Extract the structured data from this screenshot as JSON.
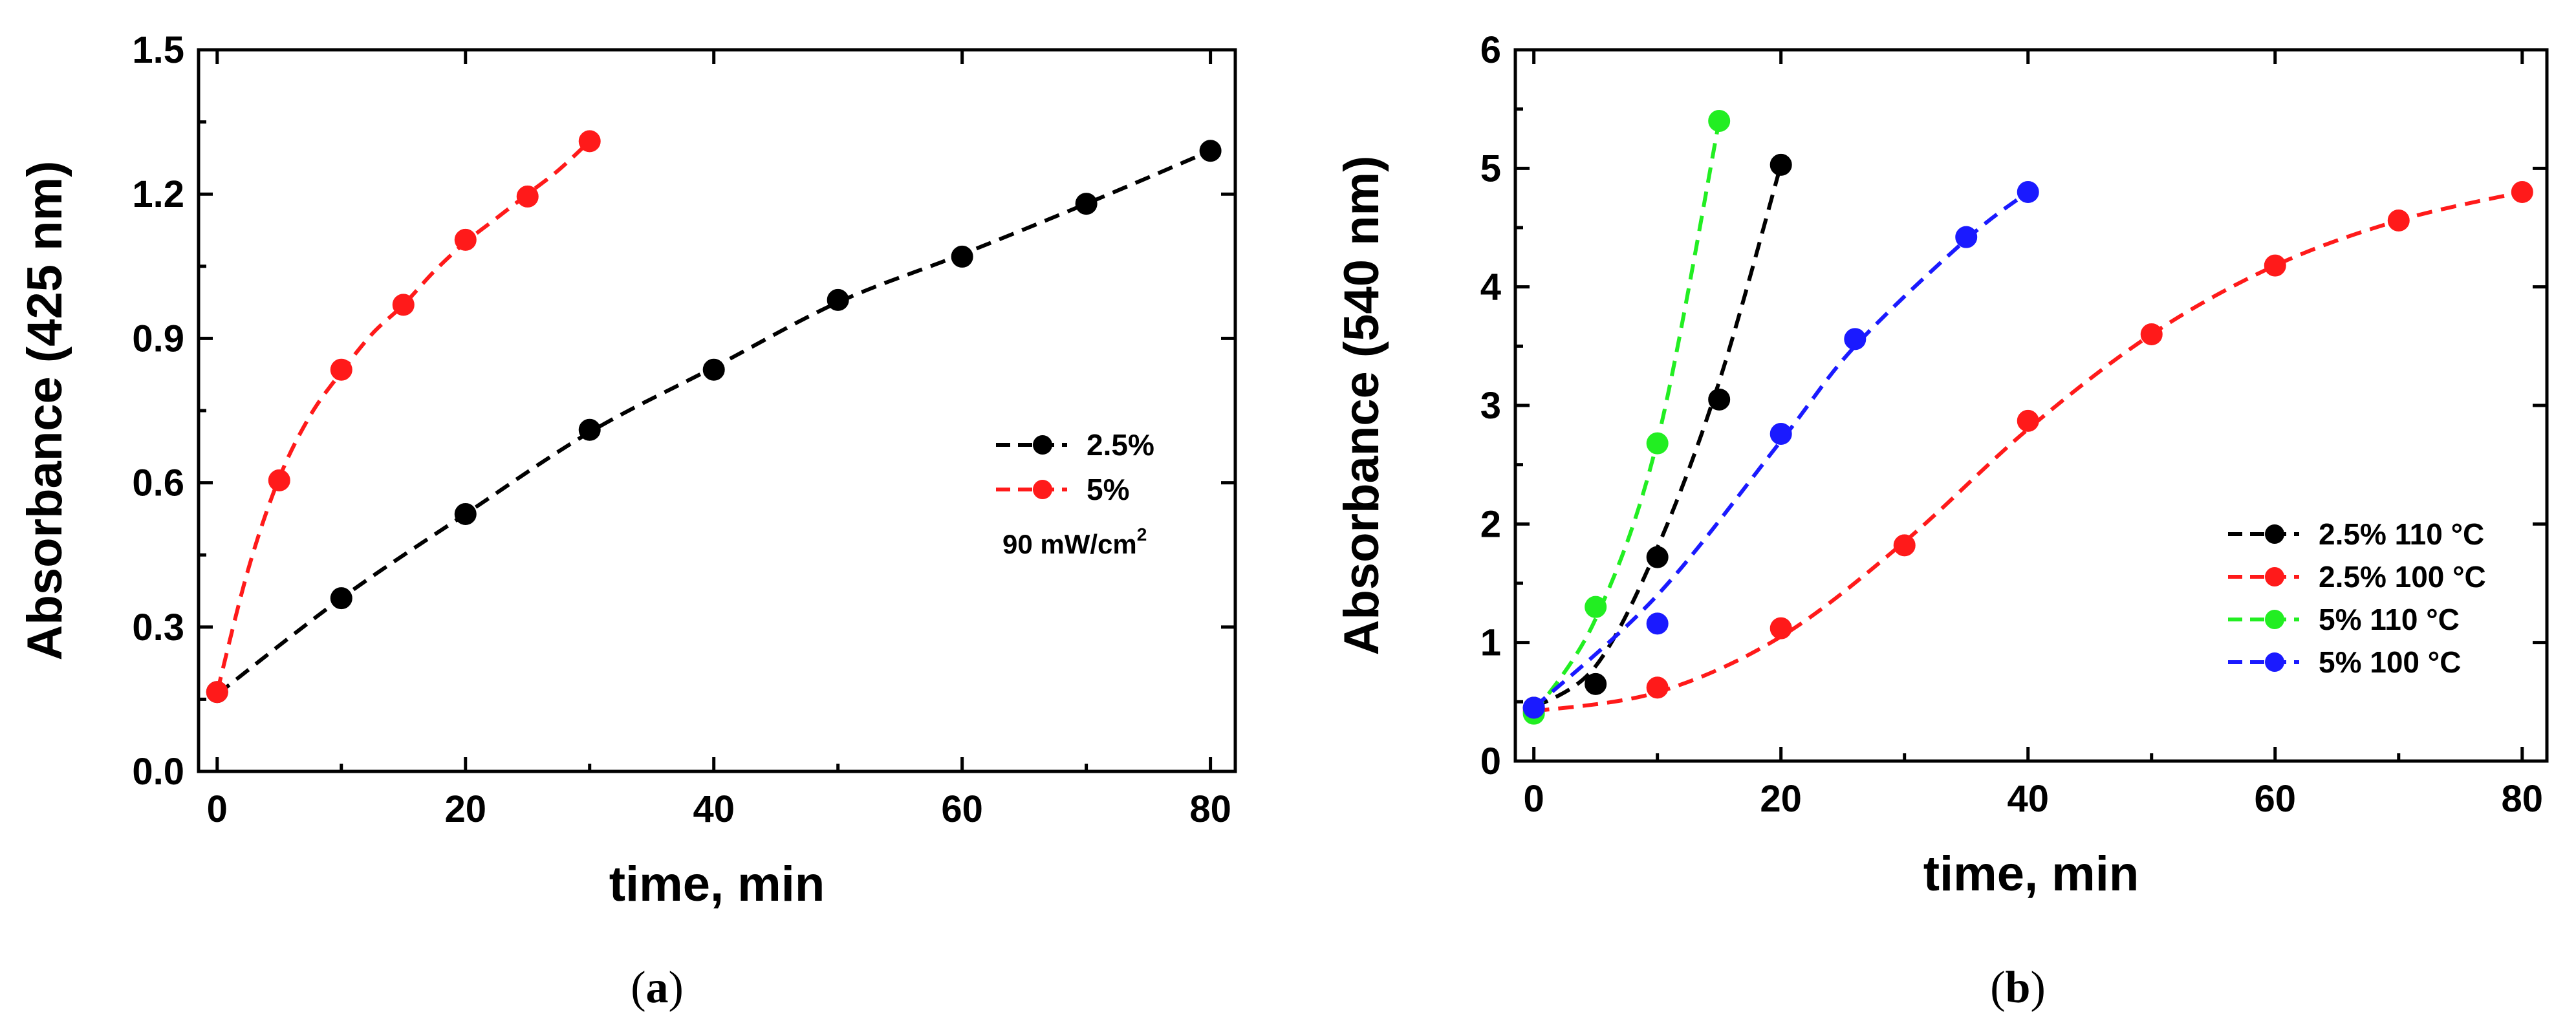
{
  "chart_data": [
    {
      "type": "line",
      "caption": "(a)",
      "xlabel": "time, min",
      "ylabel": "Absorbance (425 nm)",
      "xlim": [
        -1.5,
        82
      ],
      "ylim": [
        0,
        1.5
      ],
      "xticks": [
        0,
        20,
        40,
        60,
        80
      ],
      "yticks": [
        0.0,
        0.3,
        0.6,
        0.9,
        1.2,
        1.5
      ],
      "ytick_labels": [
        "0.0",
        "0.3",
        "0.6",
        "0.9",
        "1.2",
        "1.5"
      ],
      "legend_note": "90 mW/cm",
      "legend_note_sup": "2",
      "legend_position": "middle-right",
      "series": [
        {
          "name": "2.5%",
          "color": "#000000",
          "x": [
            0,
            10,
            20,
            30,
            40,
            50,
            60,
            70,
            80
          ],
          "y": [
            0.165,
            0.36,
            0.535,
            0.71,
            0.835,
            0.98,
            1.07,
            1.18,
            1.29
          ],
          "fit_x": [
            0,
            10,
            20,
            30,
            40,
            50,
            60,
            70,
            80
          ],
          "fit_y": [
            0.16,
            0.36,
            0.535,
            0.705,
            0.84,
            0.975,
            1.075,
            1.18,
            1.29
          ]
        },
        {
          "name": "5%",
          "color": "#ff1a1a",
          "x": [
            0,
            5,
            10,
            15,
            20,
            25,
            30
          ],
          "y": [
            0.165,
            0.605,
            0.835,
            0.97,
            1.105,
            1.195,
            1.31
          ],
          "fit_x": [
            0,
            2.5,
            5,
            7.5,
            10,
            12.5,
            15,
            17.5,
            20,
            22.5,
            25,
            27.5,
            30
          ],
          "fit_y": [
            0.165,
            0.42,
            0.61,
            0.74,
            0.83,
            0.91,
            0.97,
            1.04,
            1.1,
            1.15,
            1.2,
            1.25,
            1.31
          ]
        }
      ]
    },
    {
      "type": "line",
      "caption": "(b)",
      "xlabel": "time, min",
      "ylabel": "Absorbance (540 nm)",
      "xlim": [
        -1.5,
        82
      ],
      "ylim": [
        0,
        6
      ],
      "xticks": [
        0,
        20,
        40,
        60,
        80
      ],
      "yticks": [
        0,
        1,
        2,
        3,
        4,
        5,
        6
      ],
      "ytick_labels": [
        "0",
        "1",
        "2",
        "3",
        "4",
        "5",
        "6"
      ],
      "legend_position": "lower-right",
      "series": [
        {
          "name": "2.5% 110 °C",
          "color": "#000000",
          "x": [
            0,
            5,
            10,
            15,
            20
          ],
          "y": [
            0.45,
            0.65,
            1.72,
            3.05,
            5.03
          ],
          "fit_x": [
            0,
            5,
            10,
            15,
            20
          ],
          "fit_y": [
            0.45,
            0.8,
            1.8,
            3.2,
            5.03
          ]
        },
        {
          "name": "2.5% 100 °C",
          "color": "#ff1a1a",
          "x": [
            0,
            10,
            20,
            30,
            40,
            50,
            60,
            70,
            80
          ],
          "y": [
            0.42,
            0.62,
            1.12,
            1.82,
            2.87,
            3.6,
            4.18,
            4.56,
            4.8
          ],
          "fit_x": [
            0,
            10,
            20,
            30,
            40,
            50,
            60,
            70,
            80
          ],
          "fit_y": [
            0.42,
            0.58,
            1.05,
            1.85,
            2.8,
            3.6,
            4.18,
            4.56,
            4.8
          ]
        },
        {
          "name": "5% 110 °C",
          "color": "#22ee22",
          "x": [
            0,
            5,
            10,
            15
          ],
          "y": [
            0.4,
            1.3,
            2.68,
            5.4
          ],
          "fit_x": [
            0,
            5,
            10,
            15
          ],
          "fit_y": [
            0.4,
            1.2,
            2.7,
            5.4
          ]
        },
        {
          "name": "5% 100 °C",
          "color": "#1a1aff",
          "x": [
            0,
            10,
            20,
            26,
            35,
            40
          ],
          "y": [
            0.45,
            1.16,
            2.76,
            3.56,
            4.42,
            4.8
          ],
          "fit_x": [
            0,
            10,
            20,
            26,
            35,
            40
          ],
          "fit_y": [
            0.45,
            1.4,
            2.7,
            3.5,
            4.4,
            4.8
          ]
        }
      ]
    }
  ]
}
